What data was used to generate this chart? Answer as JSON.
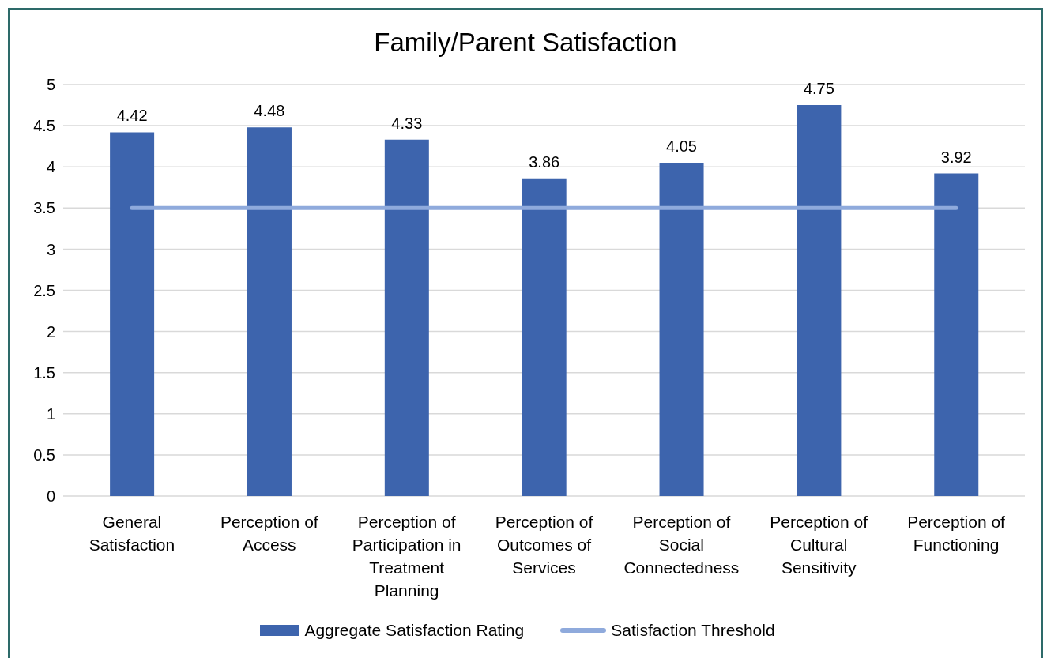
{
  "chart_data": {
    "type": "bar",
    "title": "Family/Parent Satisfaction",
    "categories": [
      "General Satisfaction",
      "Perception of Access",
      "Perception of Participation in Treatment Planning",
      "Perception of Outcomes of Services",
      "Perception of Social Connectedness",
      "Perception of Cultural Sensitivity",
      "Perception of Functioning"
    ],
    "series": [
      {
        "name": "Aggregate Satisfaction Rating",
        "color": "#3d64ad",
        "values": [
          4.42,
          4.48,
          4.33,
          3.86,
          4.05,
          4.75,
          3.92
        ],
        "value_labels": [
          "4.42",
          "4.48",
          "4.33",
          "3.86",
          "4.05",
          "4.75",
          "3.92"
        ]
      },
      {
        "name": "Satisfaction Threshold",
        "type": "line",
        "color": "#8faadc",
        "line_style": "solid",
        "values": [
          3.5,
          3.5,
          3.5,
          3.5,
          3.5,
          3.5,
          3.5
        ]
      }
    ],
    "ylim": [
      0,
      5
    ],
    "yticks": [
      0,
      0.5,
      1,
      1.5,
      2,
      2.5,
      3,
      3.5,
      4,
      4.5,
      5
    ],
    "grid": "y",
    "legend": "bottom"
  }
}
